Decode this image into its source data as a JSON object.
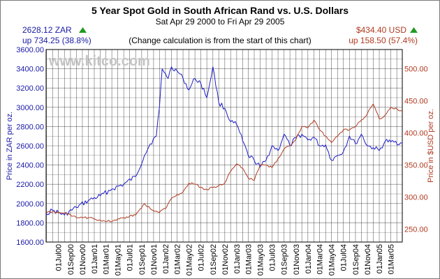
{
  "chart_data": {
    "type": "line",
    "title": "5 Year Spot Gold in South African Rand vs. U.S. Dollars",
    "subtitle": "Sat Apr 29 2000 to Fri Apr 29 2005",
    "note": "(Change calculation is from the start of this chart)",
    "watermark": "www.kitco.com",
    "left_summary": {
      "price": "2628.12 ZAR",
      "change": "up 734.25 (38.8%)"
    },
    "right_summary": {
      "price": "$434.40 USD",
      "change": "up 158.50 (57.4%)"
    },
    "ylabel_left": "Price in ZAR per oz.",
    "ylabel_right": "Price in $USD per oz.",
    "ylim_left": [
      1600,
      3600
    ],
    "ylim_right": [
      230,
      530
    ],
    "left_ticks": [
      "1600.00",
      "1800.00",
      "2000.00",
      "2200.00",
      "2400.00",
      "2600.00",
      "2800.00",
      "3000.00",
      "3200.00",
      "3400.00",
      "3600.00"
    ],
    "right_ticks": [
      "250.00",
      "300.00",
      "350.00",
      "400.00",
      "450.00",
      "500.00"
    ],
    "x_ticks": [
      "01Jul00",
      "01Sep00",
      "01Nov00",
      "01Jan01",
      "01Mar01",
      "01May01",
      "01Jul01",
      "01Sep01",
      "01Nov01",
      "01Jan02",
      "01Mar02",
      "01May02",
      "01Jul02",
      "01Sep02",
      "01Nov02",
      "01Jan03",
      "01Mar03",
      "01May03",
      "01Jul03",
      "01Sep03",
      "01Nov03",
      "01Jan04",
      "01Mar04",
      "01May04",
      "01Jul04",
      "01Sep04",
      "01Nov04",
      "01Jan05",
      "01Mar05"
    ],
    "grid": true,
    "colors": {
      "zar": "#1c1cc8",
      "usd": "#b03a20",
      "up_arrow": "#1f9a1f",
      "grid": "#000000"
    },
    "x": [
      "2000-04-29",
      "2000-06-01",
      "2000-08-01",
      "2000-10-01",
      "2000-12-01",
      "2001-02-01",
      "2001-04-01",
      "2001-06-01",
      "2001-08-01",
      "2001-09-15",
      "2001-10-15",
      "2001-11-15",
      "2001-12-01",
      "2001-12-15",
      "2002-01-01",
      "2002-01-15",
      "2002-02-01",
      "2002-03-01",
      "2002-04-01",
      "2002-05-01",
      "2002-06-01",
      "2002-07-01",
      "2002-08-01",
      "2002-09-01",
      "2002-10-01",
      "2002-11-01",
      "2002-12-01",
      "2003-01-01",
      "2003-02-01",
      "2003-03-01",
      "2003-04-01",
      "2003-05-01",
      "2003-06-01",
      "2003-07-01",
      "2003-08-01",
      "2003-09-01",
      "2003-10-01",
      "2003-11-01",
      "2003-12-01",
      "2004-01-01",
      "2004-02-01",
      "2004-03-01",
      "2004-04-01",
      "2004-05-01",
      "2004-06-01",
      "2004-07-01",
      "2004-08-01",
      "2004-09-01",
      "2004-10-01",
      "2004-11-01",
      "2004-12-01",
      "2005-01-01",
      "2005-02-01",
      "2005-03-01",
      "2005-04-29"
    ],
    "series": [
      {
        "name": "ZAR",
        "axis": "left",
        "values": [
          1894,
          1930,
          1880,
          1960,
          2030,
          2080,
          2150,
          2200,
          2280,
          2500,
          2620,
          2700,
          3000,
          3400,
          3350,
          3300,
          3420,
          3380,
          3300,
          3180,
          3300,
          3250,
          3100,
          3420,
          3050,
          2990,
          2850,
          2820,
          2650,
          2500,
          2450,
          2380,
          2450,
          2600,
          2550,
          2720,
          2600,
          2680,
          2720,
          2660,
          2690,
          2600,
          2610,
          2450,
          2500,
          2540,
          2700,
          2620,
          2720,
          2600,
          2580,
          2550,
          2650,
          2640,
          2628
        ]
      },
      {
        "name": "USD",
        "axis": "right",
        "values": [
          276,
          277,
          275,
          268,
          268,
          264,
          262,
          268,
          272,
          290,
          282,
          278,
          276,
          280,
          282,
          290,
          298,
          304,
          308,
          322,
          320,
          315,
          312,
          315,
          318,
          322,
          340,
          352,
          345,
          330,
          326,
          350,
          350,
          346,
          360,
          375,
          380,
          390,
          410,
          408,
          420,
          405,
          395,
          385,
          395,
          405,
          405,
          410,
          420,
          430,
          445,
          422,
          428,
          440,
          434
        ]
      }
    ]
  }
}
